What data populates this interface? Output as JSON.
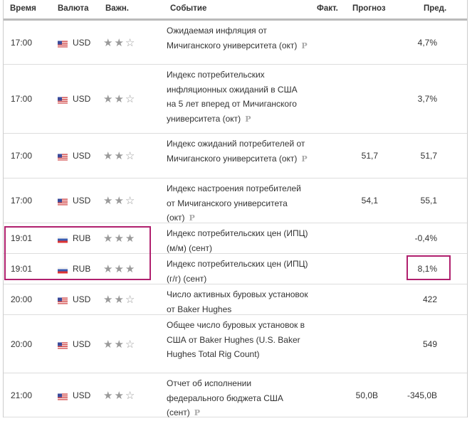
{
  "header": {
    "time": "Время",
    "currency": "Валюта",
    "importance": "Важн.",
    "event": "Событие",
    "actual": "Факт.",
    "forecast": "Прогноз",
    "previous": "Пред."
  },
  "colors": {
    "highlight": "#b0206e",
    "star_filled": "#9a9a9a"
  },
  "rows": [
    {
      "time": "17:00",
      "currency": "USD",
      "flag": "us-flag-icon",
      "stars": 2,
      "event": "Ожидаемая инфляция от Мичиганского университета (окт)",
      "actual": "",
      "forecast": "",
      "previous": "4,7%",
      "h": 62
    },
    {
      "time": "17:00",
      "currency": "USD",
      "flag": "us-flag-icon",
      "stars": 2,
      "event": "Индекс потребительских инфляционных ожиданий в США на 5 лет вперед от Мичиганского университета (окт)",
      "actual": "",
      "forecast": "",
      "previous": "3,7%",
      "h": 97
    },
    {
      "time": "17:00",
      "currency": "USD",
      "flag": "us-flag-icon",
      "stars": 2,
      "event": "Индекс ожиданий потребителей от Мичиганского университета (окт)",
      "actual": "",
      "forecast": "51,7",
      "previous": "51,7",
      "h": 63
    },
    {
      "time": "17:00",
      "currency": "USD",
      "flag": "us-flag-icon",
      "stars": 2,
      "event": "Индекс настроения потребителей от Мичиганского университета (окт)",
      "actual": "",
      "forecast": "54,1",
      "previous": "55,1",
      "h": 63
    },
    {
      "time": "19:01",
      "currency": "RUB",
      "flag": "ru-flag-icon",
      "stars": 3,
      "event": "Индекс потребительских цен (ИПЦ) (м/м) (сент)",
      "actual": "",
      "forecast": "",
      "previous": "-0,4%",
      "h": 43
    },
    {
      "time": "19:01",
      "currency": "RUB",
      "flag": "ru-flag-icon",
      "stars": 3,
      "event": "Индекс потребительских цен (ИПЦ) (г/г) (сент)",
      "actual": "",
      "forecast": "",
      "previous": "8,1%",
      "h": 43
    },
    {
      "time": "20:00",
      "currency": "USD",
      "flag": "us-flag-icon",
      "stars": 2,
      "event": "Число активных буровых установок от Baker Hughes",
      "actual": "",
      "forecast": "",
      "previous": "422",
      "h": 43
    },
    {
      "time": "20:00",
      "currency": "USD",
      "flag": "us-flag-icon",
      "stars": 2,
      "event": "Общее число буровых установок в США от Baker Hughes (U.S. Baker Hughes Total Rig Count)",
      "actual": "",
      "forecast": "",
      "previous": "549",
      "h": 82
    },
    {
      "time": "21:00",
      "currency": "USD",
      "flag": "us-flag-icon",
      "stars": 2,
      "event": "Отчет об исполнении федерального бюджета США (сент)",
      "actual": "",
      "forecast": "50,0B",
      "previous": "-345,0B",
      "h": 62
    }
  ],
  "premarker": "P"
}
